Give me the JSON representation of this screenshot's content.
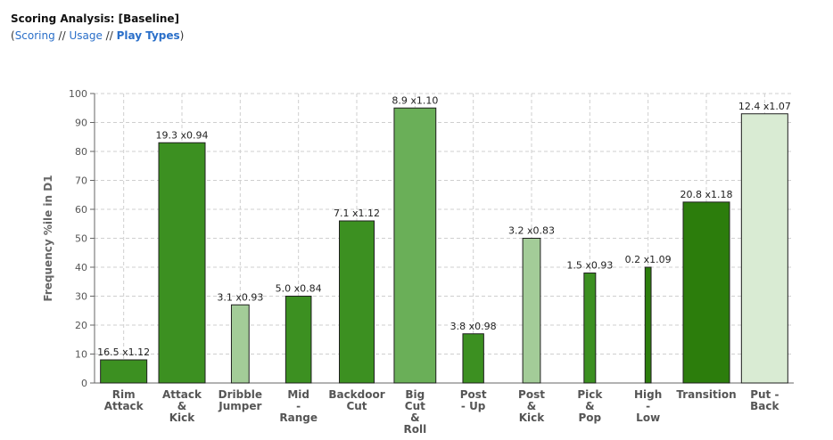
{
  "header": {
    "title": "Scoring Analysis: [Baseline]",
    "nav_open": "(",
    "nav_sep": " // ",
    "nav_close": ")",
    "links": [
      {
        "label": "Scoring",
        "active": false
      },
      {
        "label": "Usage",
        "active": false
      },
      {
        "label": "Play Types",
        "active": true
      }
    ]
  },
  "chart_data": {
    "type": "bar",
    "ylabel": "Frequency %ile in D1",
    "xlabel": "",
    "title": "",
    "ylim": [
      0,
      100
    ],
    "yticks": [
      0,
      10,
      20,
      30,
      40,
      50,
      60,
      70,
      80,
      90,
      100
    ],
    "grid": true,
    "categories": [
      [
        "Rim",
        "Attack"
      ],
      [
        "Attack",
        "&",
        "Kick"
      ],
      [
        "Dribble",
        "Jumper"
      ],
      [
        "Mid",
        "-",
        "Range"
      ],
      [
        "Backdoor",
        "Cut"
      ],
      [
        "Big",
        "Cut",
        "&",
        "Roll"
      ],
      [
        "Post",
        "- Up"
      ],
      [
        "Post",
        "&",
        "Kick"
      ],
      [
        "Pick",
        "&",
        "Pop"
      ],
      [
        "High",
        "-",
        "Low"
      ],
      [
        "Transition"
      ],
      [
        "Put -",
        "Back"
      ]
    ],
    "values": [
      8,
      83,
      27,
      30,
      56,
      95,
      17,
      50,
      38,
      40,
      62.5,
      93
    ],
    "bar_widths": [
      1.0,
      1.0,
      0.38,
      0.55,
      0.75,
      0.9,
      0.45,
      0.38,
      0.25,
      0.13,
      1.0,
      1.0
    ],
    "labels": [
      "16.5 x1.12",
      "19.3 x0.94",
      "3.1 x0.93",
      "5.0 x0.84",
      "7.1 x1.12",
      "8.9 x1.10",
      "3.8 x0.98",
      "3.2 x0.83",
      "1.5 x0.93",
      "0.2 x1.09",
      "20.8 x1.18",
      "12.4 x1.07"
    ],
    "colors": [
      "#3c9021",
      "#3c9021",
      "#a3cc98",
      "#3c9021",
      "#3c9021",
      "#6aaf58",
      "#3c9021",
      "#a3cc98",
      "#3c9021",
      "#2c7d0c",
      "#2c7d0c",
      "#d9ebd3"
    ]
  }
}
